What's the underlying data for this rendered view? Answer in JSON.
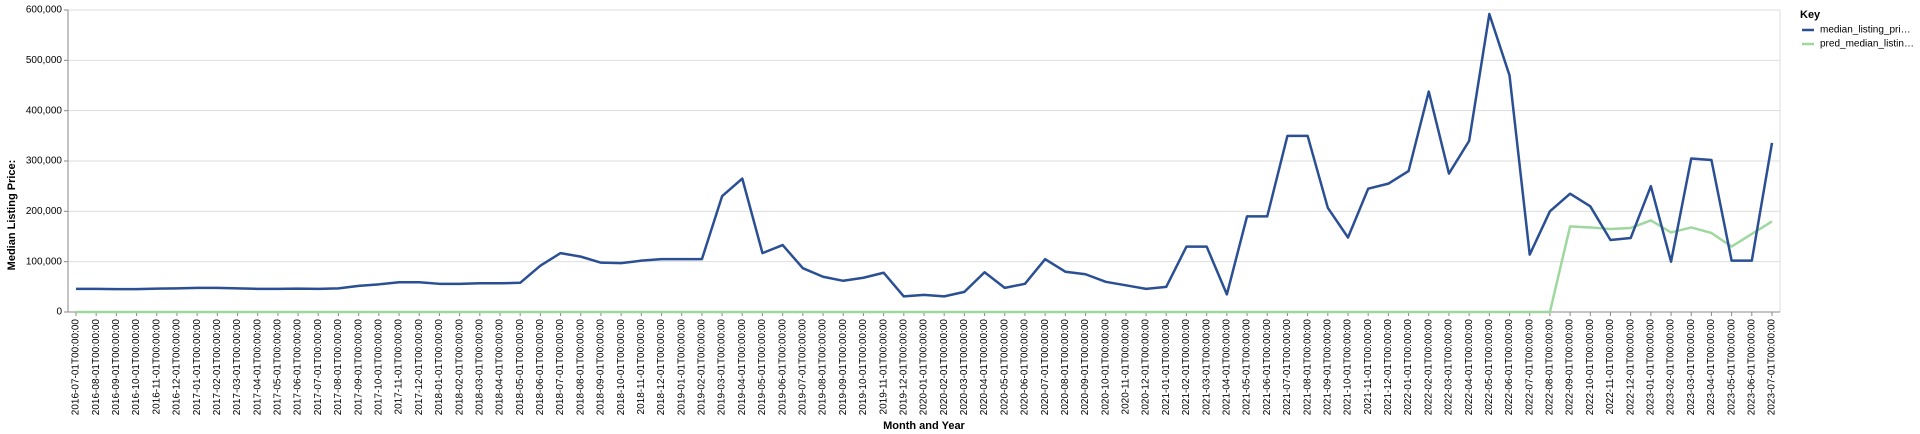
{
  "chart_data": {
    "type": "line",
    "x_label": "Month and Year",
    "y_label": "Median Listing Price:",
    "legend_title": "Key",
    "legend_position": "right",
    "grid": true,
    "categories": [
      "2016-07-01T00:00:00",
      "2016-08-01T00:00:00",
      "2016-09-01T00:00:00",
      "2016-10-01T00:00:00",
      "2016-11-01T00:00:00",
      "2016-12-01T00:00:00",
      "2017-01-01T00:00:00",
      "2017-02-01T00:00:00",
      "2017-03-01T00:00:00",
      "2017-04-01T00:00:00",
      "2017-05-01T00:00:00",
      "2017-06-01T00:00:00",
      "2017-07-01T00:00:00",
      "2017-08-01T00:00:00",
      "2017-09-01T00:00:00",
      "2017-10-01T00:00:00",
      "2017-11-01T00:00:00",
      "2017-12-01T00:00:00",
      "2018-01-01T00:00:00",
      "2018-02-01T00:00:00",
      "2018-03-01T00:00:00",
      "2018-04-01T00:00:00",
      "2018-05-01T00:00:00",
      "2018-06-01T00:00:00",
      "2018-07-01T00:00:00",
      "2018-08-01T00:00:00",
      "2018-09-01T00:00:00",
      "2018-10-01T00:00:00",
      "2018-11-01T00:00:00",
      "2018-12-01T00:00:00",
      "2019-01-01T00:00:00",
      "2019-02-01T00:00:00",
      "2019-03-01T00:00:00",
      "2019-04-01T00:00:00",
      "2019-05-01T00:00:00",
      "2019-06-01T00:00:00",
      "2019-07-01T00:00:00",
      "2019-08-01T00:00:00",
      "2019-09-01T00:00:00",
      "2019-10-01T00:00:00",
      "2019-11-01T00:00:00",
      "2019-12-01T00:00:00",
      "2020-01-01T00:00:00",
      "2020-02-01T00:00:00",
      "2020-03-01T00:00:00",
      "2020-04-01T00:00:00",
      "2020-05-01T00:00:00",
      "2020-06-01T00:00:00",
      "2020-07-01T00:00:00",
      "2020-08-01T00:00:00",
      "2020-09-01T00:00:00",
      "2020-10-01T00:00:00",
      "2020-11-01T00:00:00",
      "2020-12-01T00:00:00",
      "2021-01-01T00:00:00",
      "2021-02-01T00:00:00",
      "2021-03-01T00:00:00",
      "2021-04-01T00:00:00",
      "2021-05-01T00:00:00",
      "2021-06-01T00:00:00",
      "2021-07-01T00:00:00",
      "2021-08-01T00:00:00",
      "2021-09-01T00:00:00",
      "2021-10-01T00:00:00",
      "2021-11-01T00:00:00",
      "2021-12-01T00:00:00",
      "2022-01-01T00:00:00",
      "2022-02-01T00:00:00",
      "2022-03-01T00:00:00",
      "2022-04-01T00:00:00",
      "2022-05-01T00:00:00",
      "2022-06-01T00:00:00",
      "2022-07-01T00:00:00",
      "2022-08-01T00:00:00",
      "2022-09-01T00:00:00",
      "2022-10-01T00:00:00",
      "2022-11-01T00:00:00",
      "2022-12-01T00:00:00",
      "2023-01-01T00:00:00",
      "2023-02-01T00:00:00",
      "2023-03-01T00:00:00",
      "2023-04-01T00:00:00",
      "2023-05-01T00:00:00",
      "2023-06-01T00:00:00",
      "2023-07-01T00:00:00"
    ],
    "series": [
      {
        "name": "median_listing_pri…",
        "color": "#2a4f94",
        "values": [
          46000,
          46000,
          45500,
          45500,
          46500,
          47000,
          48000,
          48000,
          47000,
          46000,
          46000,
          46500,
          46000,
          47000,
          52000,
          55000,
          59000,
          59000,
          56000,
          56000,
          57000,
          57000,
          58000,
          92000,
          117000,
          110000,
          98000,
          97000,
          102000,
          105000,
          105000,
          105000,
          230000,
          265000,
          117000,
          133000,
          87000,
          70000,
          62000,
          68000,
          78000,
          31000,
          34000,
          31000,
          40000,
          79000,
          48000,
          56000,
          105000,
          80000,
          75000,
          60000,
          53000,
          46000,
          50000,
          130000,
          130000,
          35000,
          190000,
          190000,
          350000,
          350000,
          207000,
          148000,
          245000,
          255000,
          280000,
          438000,
          275000,
          340000,
          592000,
          470000,
          114000,
          200000,
          235000,
          210000,
          143000,
          147000,
          250000,
          100000,
          305000,
          302000,
          102000,
          102000,
          336000
        ]
      },
      {
        "name": "pred_median_listin…",
        "color": "#9fd89f",
        "values": [
          0,
          0,
          0,
          0,
          0,
          0,
          0,
          0,
          0,
          0,
          0,
          0,
          0,
          0,
          0,
          0,
          0,
          0,
          0,
          0,
          0,
          0,
          0,
          0,
          0,
          0,
          0,
          0,
          0,
          0,
          0,
          0,
          0,
          0,
          0,
          0,
          0,
          0,
          0,
          0,
          0,
          0,
          0,
          0,
          0,
          0,
          0,
          0,
          0,
          0,
          0,
          0,
          0,
          0,
          0,
          0,
          0,
          0,
          0,
          0,
          0,
          0,
          0,
          0,
          0,
          0,
          0,
          0,
          0,
          0,
          0,
          0,
          0,
          0,
          170000,
          168000,
          165000,
          167000,
          182000,
          158000,
          168000,
          157000,
          130000,
          155000,
          180000
        ]
      }
    ],
    "ylim": [
      0,
      600000
    ],
    "yticks": [
      0,
      {
        "value": 100000,
        "label": "100,000"
      },
      {
        "value": 200000,
        "label": "200,000"
      },
      {
        "value": 300000,
        "label": "300,000"
      },
      {
        "value": 400000,
        "label": "400,000"
      },
      {
        "value": 500000,
        "label": "500,000"
      },
      {
        "value": 600000,
        "label": "600,000"
      }
    ]
  }
}
